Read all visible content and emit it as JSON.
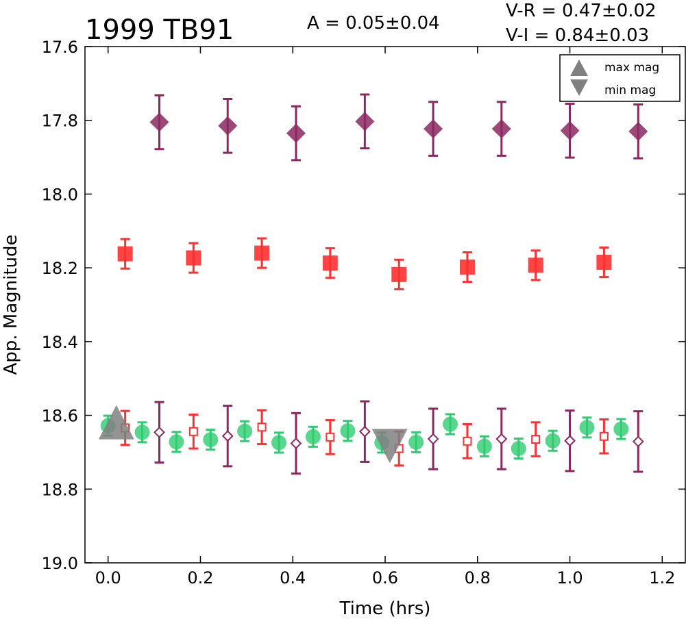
{
  "chart_data": {
    "type": "scatter",
    "title": "1999 TB91",
    "annotations": {
      "amplitude": "A  = 0.05±0.04",
      "v_minus_r": "V-R = 0.47±0.02",
      "v_minus_i": "V-I  = 0.84±0.03"
    },
    "xlabel": "Time (hrs)",
    "ylabel": "App. Magnitude",
    "xlim": [
      -0.05,
      1.25
    ],
    "ylim": [
      19.0,
      17.6
    ],
    "y_inverted": true,
    "xticks": [
      "0.0",
      "0.2",
      "0.4",
      "0.6",
      "0.8",
      "1.0",
      "1.2"
    ],
    "yticks": [
      "17.6",
      "17.8",
      "18.0",
      "18.2",
      "18.4",
      "18.6",
      "18.8",
      "19.0"
    ],
    "grid": false,
    "legend": {
      "position": "top-right",
      "entries": [
        {
          "label": "max mag",
          "marker": "triangle-up",
          "color": "#808080"
        },
        {
          "label": "min mag",
          "marker": "triangle-down",
          "color": "#808080"
        }
      ]
    },
    "series": [
      {
        "marker": "diamond",
        "color": "#8b2860",
        "x": [
          0.111,
          0.259,
          0.407,
          0.556,
          0.704,
          0.852,
          1.0,
          1.148
        ],
        "y": [
          17.805,
          17.815,
          17.835,
          17.803,
          17.823,
          17.823,
          17.828,
          17.83
        ],
        "err": [
          0.073,
          0.073,
          0.073,
          0.073,
          0.073,
          0.073,
          0.073,
          0.073
        ]
      },
      {
        "marker": "square",
        "color": "#ff3030",
        "x": [
          0.037,
          0.185,
          0.333,
          0.481,
          0.63,
          0.778,
          0.926,
          1.074
        ],
        "y": [
          18.162,
          18.173,
          18.16,
          18.187,
          18.218,
          18.198,
          18.193,
          18.185
        ],
        "err": [
          0.04,
          0.04,
          0.04,
          0.04,
          0.04,
          0.04,
          0.04,
          0.04
        ]
      },
      {
        "marker": "circle",
        "color": "#2ecc71",
        "x": [
          0.0,
          0.074,
          0.148,
          0.222,
          0.296,
          0.37,
          0.444,
          0.519,
          0.593,
          0.667,
          0.741,
          0.815,
          0.889,
          0.963,
          1.037,
          1.111
        ],
        "y": [
          18.628,
          18.646,
          18.672,
          18.666,
          18.643,
          18.674,
          18.658,
          18.642,
          18.674,
          18.673,
          18.624,
          18.684,
          18.69,
          18.669,
          18.633,
          18.637
        ],
        "err": [
          0.027,
          0.027,
          0.027,
          0.027,
          0.027,
          0.027,
          0.027,
          0.027,
          0.027,
          0.027,
          0.027,
          0.027,
          0.027,
          0.027,
          0.027,
          0.027
        ]
      },
      {
        "marker": "square-open",
        "color": "#ff3030",
        "x": [
          0.037,
          0.185,
          0.333,
          0.481,
          0.63,
          0.778,
          0.926,
          1.074
        ],
        "y": [
          18.634,
          18.644,
          18.632,
          18.659,
          18.69,
          18.67,
          18.665,
          18.657
        ],
        "err": [
          0.046,
          0.046,
          0.046,
          0.046,
          0.046,
          0.046,
          0.046,
          0.046
        ]
      },
      {
        "marker": "diamond-open",
        "color": "#8b2860",
        "x": [
          0.111,
          0.259,
          0.407,
          0.556,
          0.704,
          0.852,
          1.0,
          1.148
        ],
        "y": [
          18.646,
          18.656,
          18.676,
          18.644,
          18.664,
          18.664,
          18.669,
          18.671
        ],
        "err": [
          0.082,
          0.082,
          0.082,
          0.082,
          0.082,
          0.082,
          0.082,
          0.082
        ]
      }
    ],
    "extrema": [
      {
        "label": "max mag",
        "marker": "triangle-up",
        "x": 0.018,
        "y": 18.628
      },
      {
        "label": "min mag",
        "marker": "triangle-down",
        "x": 0.61,
        "y": 18.674
      }
    ]
  }
}
